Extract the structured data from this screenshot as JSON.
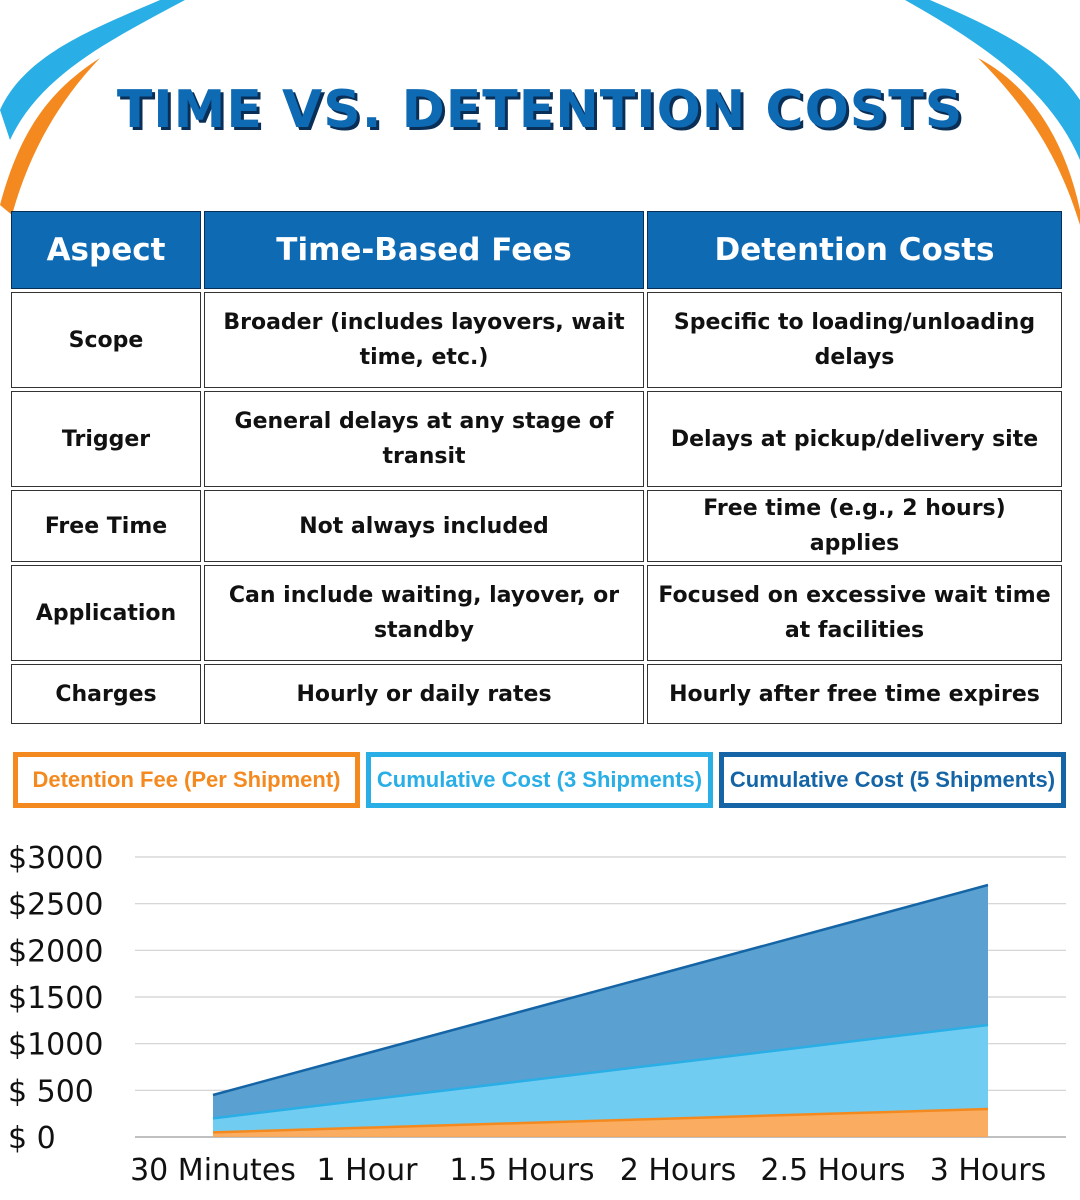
{
  "title": "TIME VS. DETENTION COSTS",
  "table": {
    "headers": [
      "Aspect",
      "Time-Based Fees",
      "Detention Costs"
    ],
    "rows": [
      [
        "Scope",
        "Broader (includes layovers, wait time, etc.)",
        "Specific to loading/unloading delays"
      ],
      [
        "Trigger",
        "General delays at any stage of transit",
        "Delays at pickup/delivery site"
      ],
      [
        "Free Time",
        "Not always included",
        "Free time (e.g., 2 hours) applies"
      ],
      [
        "Application",
        "Can include waiting, layover, or standby",
        "Focused on excessive wait time at facilities"
      ],
      [
        "Charges",
        "Hourly or daily rates",
        "Hourly after free time expires"
      ]
    ]
  },
  "colors": {
    "brand_blue": "#0f6ab4",
    "orange": "#f48a1f",
    "light_blue": "#29aee6",
    "dark_blue": "#1565a6"
  },
  "chart_data": {
    "type": "area",
    "categories": [
      "30 Minutes",
      "1 Hour",
      "1.5 Hours",
      "2 Hours",
      "2.5 Hours",
      "3 Hours"
    ],
    "series": [
      {
        "name": "Detention Fee (Per Shipment)",
        "color": "#f48a1f",
        "values": [
          50,
          100,
          150,
          200,
          250,
          300
        ]
      },
      {
        "name": "Cumulative Cost (3 Shipments)",
        "color": "#29aee6",
        "values": [
          150,
          300,
          450,
          600,
          750,
          900
        ]
      },
      {
        "name": "Cumulative Cost (5 Shipments)",
        "color": "#1565a6",
        "values": [
          250,
          500,
          750,
          1000,
          1250,
          1500
        ]
      }
    ],
    "stacked": true,
    "yticks": [
      "$3000",
      "$2500",
      "$2000",
      "$1500",
      "$1000",
      "$ 500",
      "$ 0"
    ],
    "ylim": [
      0,
      3000
    ],
    "grid": true,
    "legend": "top"
  }
}
